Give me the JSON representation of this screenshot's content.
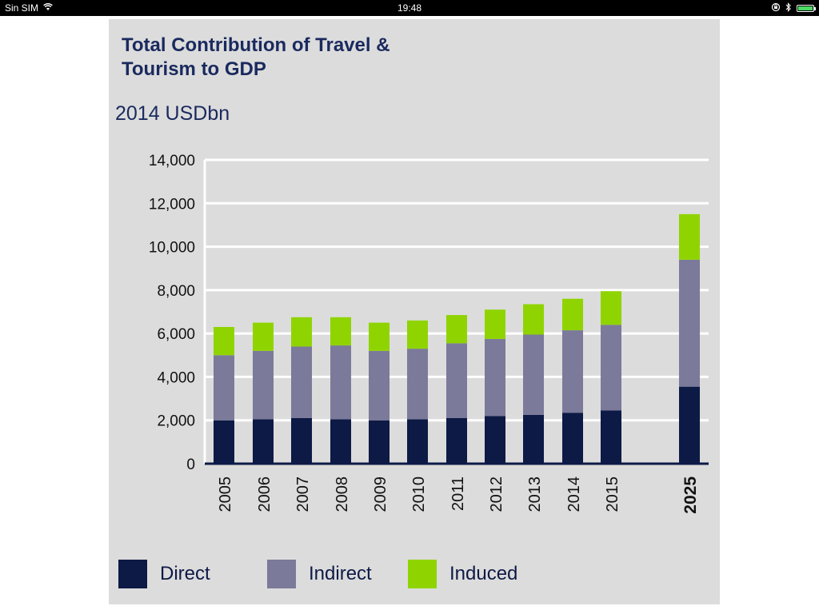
{
  "status_bar": {
    "carrier": "Sin SIM",
    "time": "19:48"
  },
  "colors": {
    "Direct": "#0d1a45",
    "Indirect": "#7b7a9a",
    "Induced": "#8fd400",
    "panel_bg": "#dcdcdc",
    "title": "#1a2a5e"
  },
  "chart_data": {
    "type": "bar",
    "stacked": true,
    "title": "Total Contribution of Travel & Tourism to GDP",
    "subtitle": "2014 USDbn",
    "xlabel": "",
    "ylabel": "",
    "ylim": [
      0,
      14000
    ],
    "yticks": [
      0,
      2000,
      4000,
      6000,
      8000,
      10000,
      12000,
      14000
    ],
    "ytick_labels": [
      "0",
      "2,000",
      "4,000",
      "6,000",
      "8,000",
      "10,000",
      "12,000",
      "14,000"
    ],
    "categories": [
      "2005",
      "2006",
      "2007",
      "2008",
      "2009",
      "2010",
      "2011",
      "2012",
      "2013",
      "2014",
      "2015",
      "2025"
    ],
    "highlight_category": "2025",
    "grid": true,
    "legend_position": "bottom",
    "series": [
      {
        "name": "Direct",
        "values": [
          2000,
          2050,
          2100,
          2050,
          2000,
          2050,
          2100,
          2200,
          2250,
          2350,
          2450,
          3550
        ]
      },
      {
        "name": "Indirect",
        "values": [
          3000,
          3150,
          3300,
          3400,
          3200,
          3250,
          3450,
          3550,
          3700,
          3800,
          3950,
          5850
        ]
      },
      {
        "name": "Induced",
        "values": [
          1300,
          1300,
          1350,
          1300,
          1300,
          1300,
          1300,
          1350,
          1400,
          1450,
          1550,
          2100
        ]
      }
    ]
  }
}
